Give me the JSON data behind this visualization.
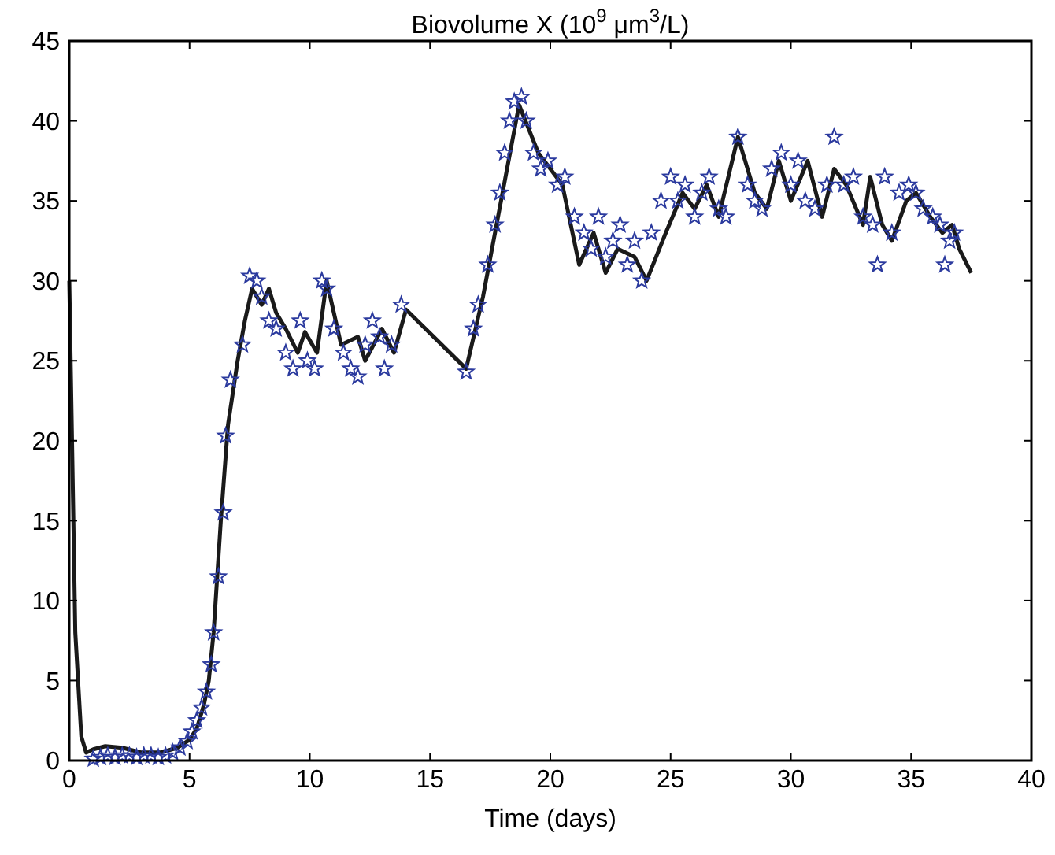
{
  "chart_data": {
    "type": "line",
    "title": "Biovolume X (10$^{9}$ μm$^{3}$/L)",
    "xlabel": "Time (days)",
    "xlim": [
      0,
      40
    ],
    "xticks": [
      0,
      5,
      10,
      15,
      20,
      25,
      30,
      35,
      40
    ],
    "ylim": [
      0,
      45
    ],
    "yticks": [
      0,
      5,
      10,
      15,
      20,
      25,
      30,
      35,
      40,
      45
    ],
    "grid": false,
    "series": [
      {
        "color": "#1a1a1a",
        "marker": "none",
        "line_style": "solid",
        "x": [
          0,
          0.25,
          0.5,
          0.7,
          1.0,
          1.5,
          2.2,
          3.0,
          3.8,
          4.5,
          5.0,
          5.3,
          5.6,
          5.8,
          6.0,
          6.3,
          6.6,
          7.0,
          7.3,
          7.6,
          8.0,
          8.3,
          8.6,
          9.0,
          9.5,
          9.8,
          10.3,
          10.7,
          11.3,
          12.0,
          12.3,
          13.0,
          13.5,
          14.0,
          16.5,
          17.2,
          18.2,
          18.7,
          19.5,
          20.5,
          21.2,
          21.8,
          22.3,
          22.8,
          23.5,
          24.0,
          24.8,
          25.5,
          26.0,
          26.5,
          27.0,
          27.8,
          28.5,
          29.0,
          29.5,
          30.0,
          30.7,
          31.3,
          31.8,
          32.3,
          33.0,
          33.3,
          33.8,
          34.2,
          34.8,
          35.2,
          35.8,
          36.3,
          36.7,
          37.0,
          37.5
        ],
        "values": [
          30,
          8,
          1.5,
          0.5,
          0.7,
          0.9,
          0.8,
          0.5,
          0.5,
          0.8,
          1.3,
          2,
          3.5,
          5,
          8,
          15,
          21,
          25,
          27.5,
          29.5,
          28.5,
          29.5,
          28,
          27,
          25.5,
          26.8,
          25.5,
          30,
          26,
          26.5,
          25,
          27,
          25.5,
          28.2,
          24.5,
          29,
          37,
          41,
          38,
          36,
          31,
          33,
          30.5,
          32,
          31.5,
          30,
          33,
          35.5,
          34.5,
          36,
          34,
          39,
          35.5,
          34.5,
          37.5,
          35,
          37.5,
          34,
          37,
          36,
          33.5,
          36.5,
          33.5,
          32.5,
          35,
          35.5,
          34,
          33,
          33.5,
          32,
          30.5
        ]
      },
      {
        "type": "scatter",
        "color": "#2b3a9e",
        "marker": "star",
        "x": [
          1.0,
          1.3,
          1.6,
          1.9,
          2.2,
          2.5,
          2.8,
          3.1,
          3.4,
          3.7,
          4.0,
          4.3,
          4.6,
          4.9,
          5.1,
          5.3,
          5.5,
          5.7,
          5.9,
          6.0,
          6.2,
          6.4,
          6.5,
          6.7,
          7.2,
          7.5,
          7.8,
          8.0,
          8.3,
          8.6,
          9.0,
          9.3,
          9.6,
          9.9,
          10.2,
          10.5,
          10.7,
          11.0,
          11.4,
          11.7,
          12.0,
          12.3,
          12.6,
          12.9,
          13.1,
          13.4,
          13.8,
          16.5,
          16.8,
          17.0,
          17.4,
          17.7,
          17.9,
          18.1,
          18.3,
          18.5,
          18.8,
          19.0,
          19.3,
          19.6,
          19.9,
          20.3,
          20.6,
          21.0,
          21.4,
          21.7,
          22.0,
          22.3,
          22.6,
          22.9,
          23.2,
          23.5,
          23.8,
          24.2,
          24.6,
          25.0,
          25.3,
          25.6,
          26.0,
          26.3,
          26.6,
          27.0,
          27.3,
          27.8,
          28.2,
          28.5,
          28.8,
          29.2,
          29.6,
          30.0,
          30.3,
          30.6,
          31.0,
          31.5,
          31.8,
          32.2,
          32.6,
          33.0,
          33.4,
          33.6,
          33.9,
          34.2,
          34.5,
          34.9,
          35.2,
          35.5,
          35.9,
          36.2,
          36.4,
          36.6,
          36.8
        ],
        "values": [
          0.1,
          0.2,
          0.3,
          0.2,
          0.3,
          0.3,
          0.2,
          0.3,
          0.3,
          0.2,
          0.3,
          0.5,
          0.8,
          1.2,
          1.8,
          2.5,
          3.3,
          4.3,
          6,
          8,
          11.5,
          15.5,
          20.3,
          23.8,
          26,
          30.3,
          30,
          29,
          27.5,
          27,
          25.5,
          24.5,
          27.5,
          25,
          24.5,
          30,
          29.5,
          27,
          25.5,
          24.5,
          24,
          26,
          27.5,
          26.5,
          24.5,
          26,
          28.5,
          24.3,
          27,
          28.5,
          31,
          33.5,
          35.5,
          38,
          40,
          41.2,
          41.5,
          40,
          38,
          37,
          37.5,
          36,
          36.5,
          34,
          33,
          32,
          34,
          31.5,
          32.5,
          33.5,
          31,
          32.5,
          30,
          33,
          35,
          36.5,
          35,
          36,
          34,
          35.5,
          36.5,
          34.5,
          34,
          39,
          36,
          35,
          34.5,
          37,
          38,
          36,
          37.5,
          35,
          34.5,
          36,
          39,
          36,
          36.5,
          34,
          33.5,
          31,
          36.5,
          33,
          35.5,
          36,
          35.5,
          34.5,
          34,
          33.5,
          31,
          32.5,
          33
        ]
      }
    ]
  }
}
